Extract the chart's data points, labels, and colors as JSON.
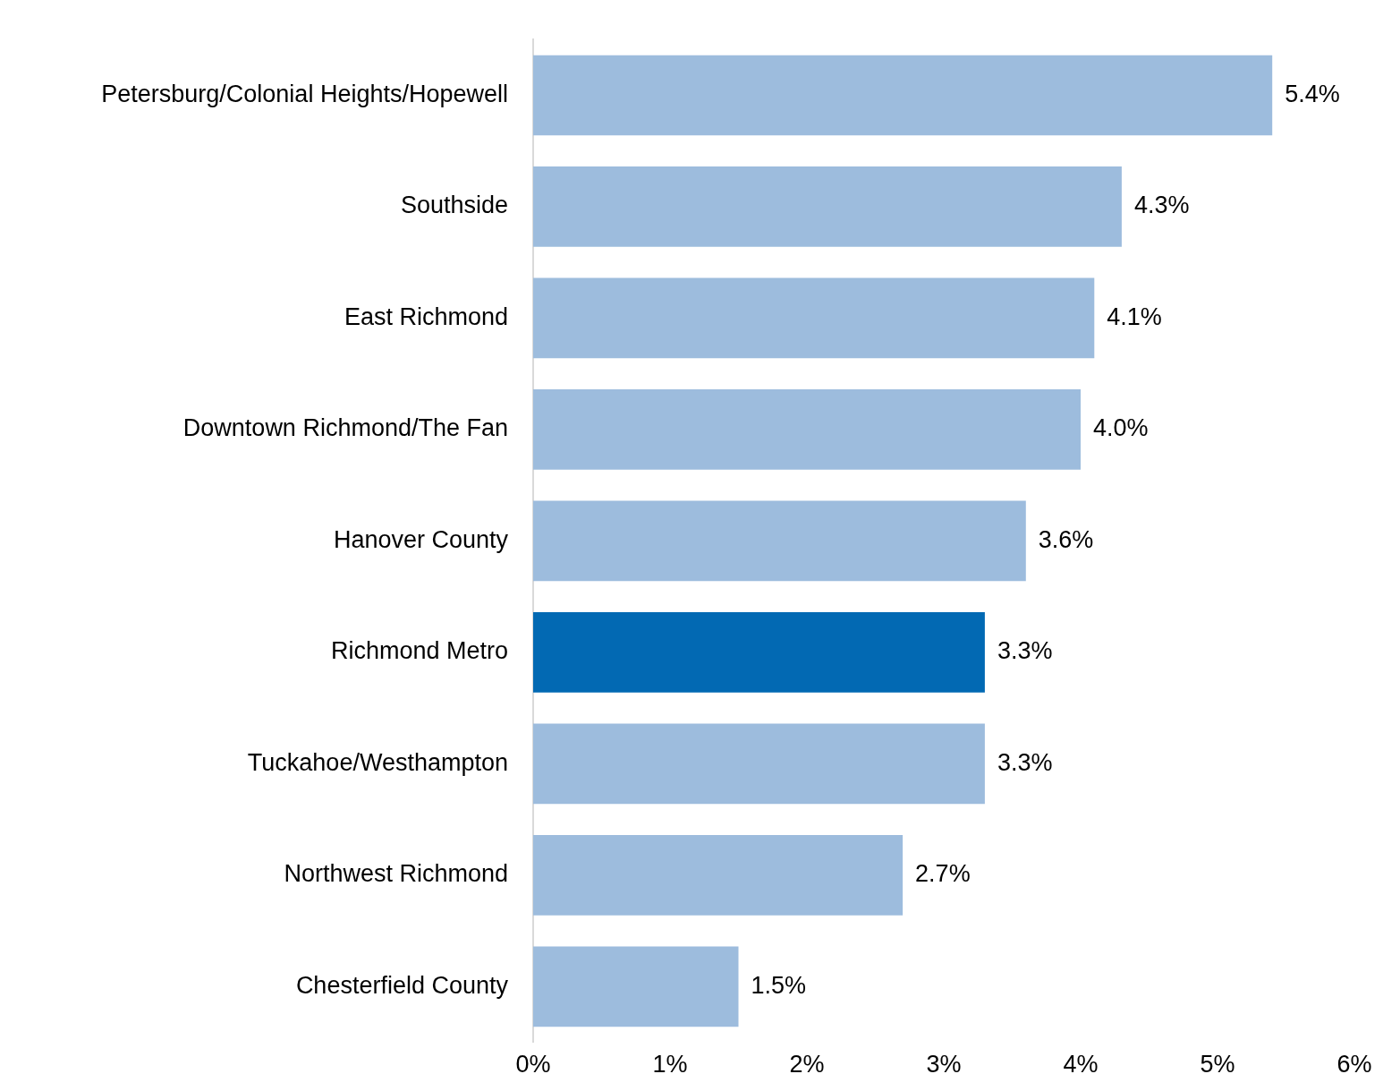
{
  "chart_data": {
    "type": "bar",
    "orientation": "horizontal",
    "categories": [
      "Petersburg/Colonial Heights/Hopewell",
      "Southside",
      "East Richmond",
      "Downtown Richmond/The Fan",
      "Hanover County",
      "Richmond Metro",
      "Tuckahoe/Westhampton",
      "Northwest Richmond",
      "Chesterfield County"
    ],
    "values": [
      5.4,
      4.3,
      4.1,
      4.0,
      3.6,
      3.3,
      3.3,
      2.7,
      1.5
    ],
    "colors": [
      "#9dbcdd",
      "#9dbcdd",
      "#9dbcdd",
      "#9dbcdd",
      "#9dbcdd",
      "#0269b3",
      "#9dbcdd",
      "#9dbcdd",
      "#9dbcdd"
    ],
    "value_labels": [
      "5.4%",
      "4.3%",
      "4.1%",
      "4.0%",
      "3.6%",
      "3.3%",
      "3.3%",
      "2.7%",
      "1.5%"
    ],
    "xlim": [
      0,
      6
    ],
    "xticks": [
      {
        "value": 0,
        "label": "0%"
      },
      {
        "value": 1,
        "label": "1%"
      },
      {
        "value": 2,
        "label": "2%"
      },
      {
        "value": 3,
        "label": "3%"
      },
      {
        "value": 4,
        "label": "4%"
      },
      {
        "value": 5,
        "label": "5%"
      },
      {
        "value": 6,
        "label": "6%"
      }
    ],
    "grid": false,
    "legend": false
  }
}
